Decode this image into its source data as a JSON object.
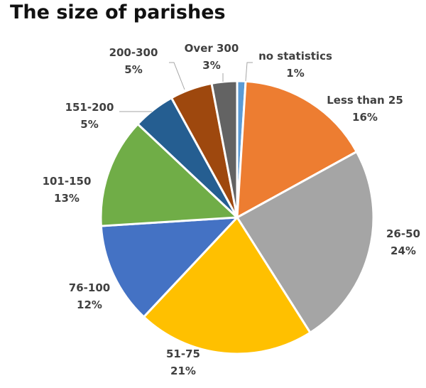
{
  "chart_data": {
    "type": "pie",
    "title": "The size of parishes",
    "slices": [
      {
        "label": "no statistics",
        "value": 1,
        "pct_label": "1%",
        "color": "#5b9bd5"
      },
      {
        "label": "Less than 25",
        "value": 16,
        "pct_label": "16%",
        "color": "#ed7d31"
      },
      {
        "label": "26-50",
        "value": 24,
        "pct_label": "24%",
        "color": "#a5a5a5"
      },
      {
        "label": "51-75",
        "value": 21,
        "pct_label": "21%",
        "color": "#ffc000"
      },
      {
        "label": "76-100",
        "value": 12,
        "pct_label": "12%",
        "color": "#4472c4"
      },
      {
        "label": "101-150",
        "value": 13,
        "pct_label": "13%",
        "color": "#70ad47"
      },
      {
        "label": "151-200",
        "value": 5,
        "pct_label": "5%",
        "color": "#255e91"
      },
      {
        "label": "200-300",
        "value": 5,
        "pct_label": "5%",
        "color": "#9e480e"
      },
      {
        "label": "Over 300",
        "value": 3,
        "pct_label": "3%",
        "color": "#636363"
      }
    ]
  }
}
